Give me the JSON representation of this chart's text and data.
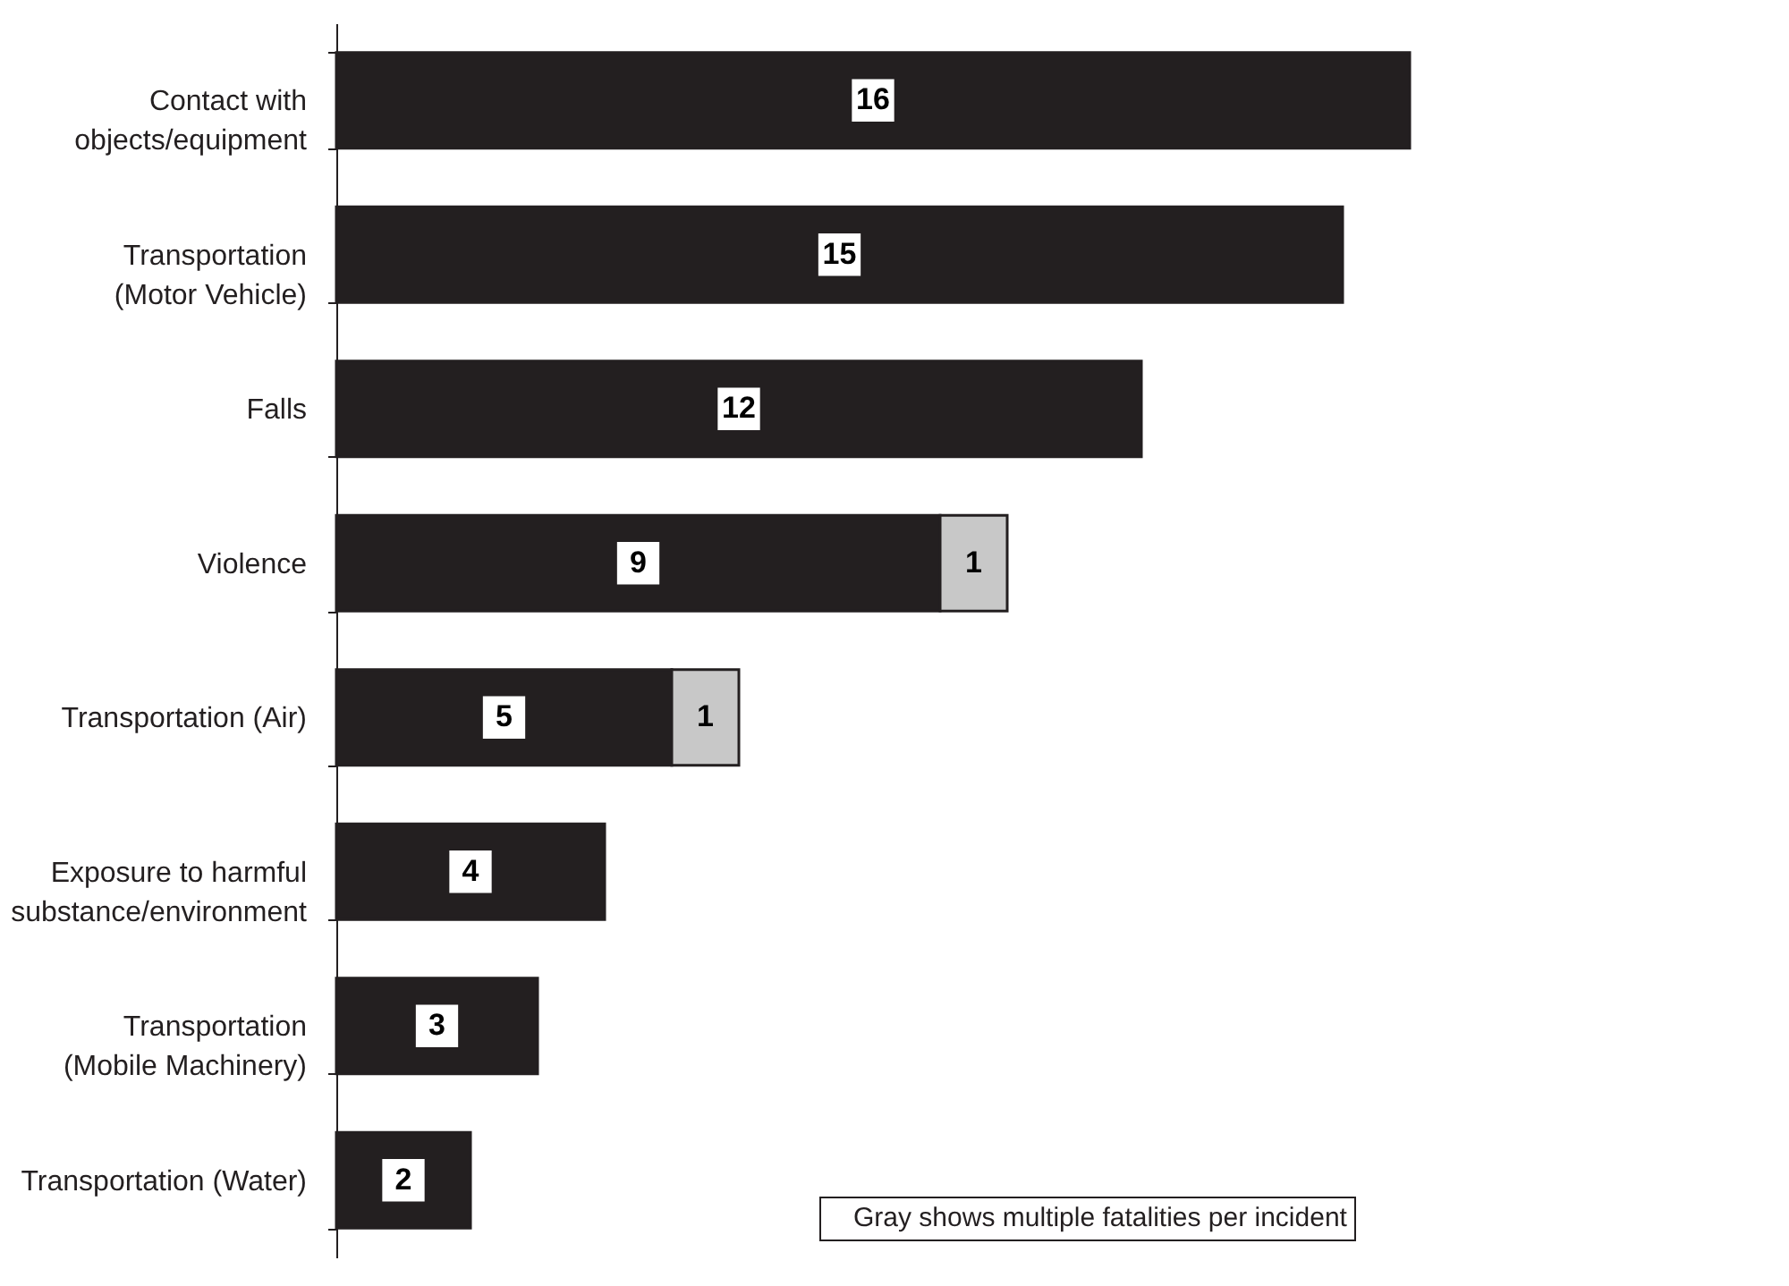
{
  "chart_data": {
    "type": "bar",
    "orientation": "horizontal",
    "stacked": true,
    "data_labels": true,
    "categories": [
      "Contact with\nobjects/equipment",
      "Transportation\n(Motor Vehicle)",
      "Falls",
      "Violence",
      "Transportation (Air)",
      "Exposure to harmful\nsubstance/environment",
      "Transportation\n(Mobile Machinery)",
      "Transportation (Water)"
    ],
    "series": [
      {
        "color": "#231f20",
        "values": [
          16,
          15,
          12,
          9,
          5,
          4,
          3,
          2
        ]
      },
      {
        "color": "#c8c8c8",
        "values": [
          null,
          null,
          null,
          1,
          1,
          null,
          null,
          null
        ]
      }
    ],
    "annotations": [
      "Gray shows multiple fatalities per incident"
    ]
  }
}
